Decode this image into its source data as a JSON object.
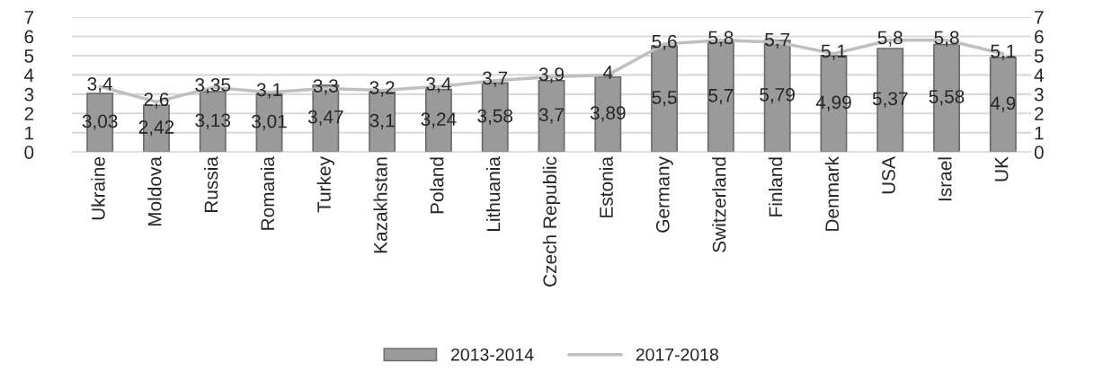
{
  "chart_data": {
    "type": "bar",
    "categories": [
      "Ukraine",
      "Moldova",
      "Russia",
      "Romania",
      "Turkey",
      "Kazakhstan",
      "Poland",
      "Lithuania",
      "Czech Republic",
      "Estonia",
      "Germany",
      "Switzerland",
      "Finland",
      "Denmark",
      "USA",
      "Israel",
      "UK"
    ],
    "series": [
      {
        "name": "2013-2014",
        "color": "#9a9a9a",
        "values": [
          3.03,
          2.42,
          3.13,
          3.01,
          3.47,
          3.1,
          3.24,
          3.58,
          3.7,
          3.89,
          5.5,
          5.7,
          5.79,
          4.99,
          5.37,
          5.58,
          4.9
        ],
        "value_labels": [
          "3,03",
          "2,42",
          "3,13",
          "3,01",
          "3,47",
          "3,1",
          "3,24",
          "3,58",
          "3,7",
          "3,89",
          "5,5",
          "5,7",
          "5,79",
          "4,99",
          "5,37",
          "5,58",
          "4,9"
        ]
      },
      {
        "name": "2017-2018",
        "type": "line",
        "color": "#bfbfbf",
        "values": [
          3.4,
          2.6,
          3.35,
          3.1,
          3.3,
          3.2,
          3.4,
          3.7,
          3.9,
          4,
          5.6,
          5.8,
          5.7,
          5.1,
          5.8,
          5.8,
          5.1
        ],
        "value_labels": [
          "3,4",
          "2,6",
          "3,35",
          "3,1",
          "3,3",
          "3,2",
          "3,4",
          "3,7",
          "3,9",
          "4",
          "5,6",
          "5,8",
          "5,7",
          "5,1",
          "5,8",
          "5,8",
          "5,1"
        ]
      }
    ],
    "ylim": [
      0,
      7
    ],
    "yticks": [
      0,
      1,
      2,
      3,
      4,
      5,
      6,
      7
    ],
    "y2lim": [
      0,
      7
    ],
    "y2ticks": [
      0,
      1,
      2,
      3,
      4,
      5,
      6,
      7
    ],
    "grid": "y",
    "legend": "bottom",
    "line_style": "solid",
    "marker": "none"
  }
}
